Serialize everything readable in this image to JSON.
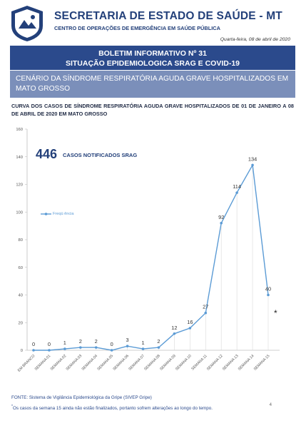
{
  "header": {
    "org_title": "SECRETARIA DE ESTADO DE SAÚDE - MT",
    "org_subtitle": "CENTRO DE OPERAÇÕES DE EMERGÊNCIA EM SAÚDE PÚBLICA",
    "date": "Quarta-feira, 08 de abril de 2020",
    "crest_icon": "state-crest-icon"
  },
  "bulletin": {
    "line1": "BOLETIM INFORMATIVO Nº 31",
    "line2": "SITUAÇÃO EPIDEMIOLOGICA SRAG E COVID-19"
  },
  "section_title": "CENÁRIO DA SÍNDROME RESPIRATÓRIA AGUDA GRAVE HOSPITALIZADOS EM MATO GROSSO",
  "chart_title": "CURVA DOS CASOS DE SÍNDROME RESPIRATÓRIA AGUDA GRAVE HOSPITALIZADOS DE 01 DE JANEIRO A 08 DE ABRIL DE 2020 EM MATO GROSSO",
  "summary": {
    "count": "446",
    "label": "CASOS NOTIFICADOS SRAG"
  },
  "chart_data": {
    "type": "line",
    "categories": [
      "EM BRANCO",
      "SEMANA 01",
      "SEMANA 02",
      "SEMANA 03",
      "SEMANA 04",
      "SEMANA 05",
      "SEMANA 06",
      "SEMANA 07",
      "SEMANA 08",
      "SEMANA 09",
      "SEMANA 10",
      "SEMANA 11",
      "SEMANA 12",
      "SEMANA 13",
      "SEMANA 14",
      "SEMANA 15"
    ],
    "series": [
      {
        "name": "Freqüência",
        "legend_text": "Freqü ência",
        "values": [
          0,
          0,
          1,
          2,
          2,
          0,
          3,
          1,
          2,
          12,
          16,
          27,
          92,
          114,
          134,
          40
        ]
      }
    ],
    "ylim": [
      0,
      160
    ],
    "yticks": [
      "0",
      "20",
      "40",
      "60",
      "80",
      "100",
      "120",
      "140",
      "160"
    ],
    "grid": false,
    "legend_position": "top-left",
    "annotation": "*",
    "line_color": "#5b9bd5"
  },
  "footer": {
    "source": "FONTE: Sistema de Vigilância Epidemiológica da Gripe (SIVEP Gripe)",
    "footnote_mark": "*",
    "footnote": "Os casos da semana 15 ainda não estão finalizados, portanto sofrem alterações ao longo do tempo.",
    "page_number": "4"
  }
}
